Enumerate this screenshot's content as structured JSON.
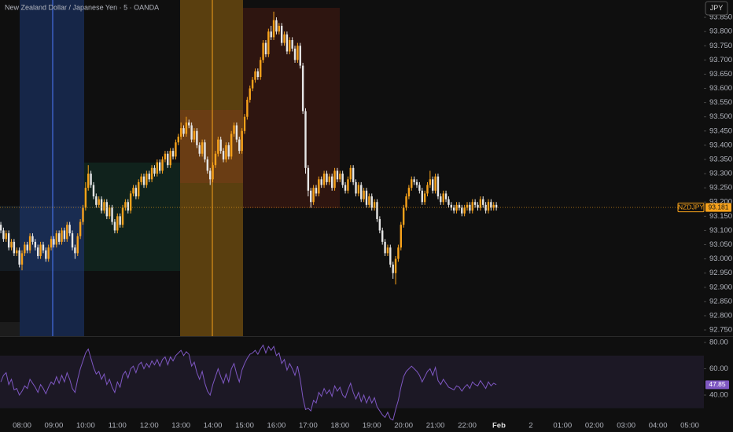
{
  "chart_data": {
    "type": "candlestick",
    "title": "New Zealand Dollar / Japanese Yen · 5 · OANDA",
    "symbol": "NZDJPY",
    "currency": "JPY",
    "last_price": 93.181,
    "up_color": "#f7a21b",
    "down_color": "#e6e6e6",
    "price_line_color": "#f7a21b",
    "ylim": [
      92.728,
      93.911
    ],
    "yticks": [
      {
        "value": 92.75,
        "label": "92.750"
      },
      {
        "value": 92.8,
        "label": "92.800"
      },
      {
        "value": 92.85,
        "label": "92.850"
      },
      {
        "value": 92.9,
        "label": "92.900"
      },
      {
        "value": 92.95,
        "label": "92.950"
      },
      {
        "value": 93.0,
        "label": "93.000"
      },
      {
        "value": 93.05,
        "label": "93.050"
      },
      {
        "value": 93.1,
        "label": "93.100"
      },
      {
        "value": 93.15,
        "label": "93.150"
      },
      {
        "value": 93.2,
        "label": "93.200"
      },
      {
        "value": 93.25,
        "label": "93.250"
      },
      {
        "value": 93.3,
        "label": "93.300"
      },
      {
        "value": 93.35,
        "label": "93.350"
      },
      {
        "value": 93.4,
        "label": "93.400"
      },
      {
        "value": 93.45,
        "label": "93.450"
      },
      {
        "value": 93.5,
        "label": "93.500"
      },
      {
        "value": 93.55,
        "label": "93.550"
      },
      {
        "value": 93.6,
        "label": "93.600"
      },
      {
        "value": 93.65,
        "label": "93.650"
      },
      {
        "value": 93.7,
        "label": "93.700"
      },
      {
        "value": 93.75,
        "label": "93.750"
      },
      {
        "value": 93.8,
        "label": "93.800"
      },
      {
        "value": 93.85,
        "label": "93.850"
      }
    ],
    "x_labels": [
      "08:00",
      "09:00",
      "10:00",
      "11:00",
      "12:00",
      "13:00",
      "14:00",
      "15:00",
      "16:00",
      "17:00",
      "18:00",
      "19:00",
      "20:00",
      "21:00",
      "22:00",
      "Feb",
      "2",
      "01:00",
      "02:00",
      "03:00",
      "04:00",
      "05:00"
    ],
    "open": [
      93.12,
      93.1,
      93.07,
      93.09,
      93.04,
      93.06,
      93.02,
      93.03,
      92.98,
      93.02,
      93.05,
      93.03,
      93.08,
      93.06,
      93.04,
      93.01,
      93.05,
      93.03,
      93.0,
      93.04,
      93.07,
      93.05,
      93.09,
      93.06,
      93.1,
      93.07,
      93.12,
      93.09,
      93.04,
      93.02,
      93.08,
      93.13,
      93.18,
      93.25,
      93.3,
      93.26,
      93.22,
      93.19,
      93.21,
      93.17,
      93.2,
      93.15,
      93.18,
      93.13,
      93.1,
      93.15,
      93.12,
      93.18,
      93.2,
      93.17,
      93.23,
      93.25,
      93.22,
      93.27,
      93.29,
      93.26,
      93.3,
      93.28,
      93.32,
      93.3,
      93.34,
      93.31,
      93.35,
      93.37,
      93.33,
      93.38,
      93.36,
      93.41,
      93.43,
      93.46,
      93.44,
      93.48,
      93.47,
      93.42,
      93.45,
      93.4,
      93.37,
      93.41,
      93.35,
      93.31,
      93.28,
      93.33,
      93.37,
      93.42,
      93.38,
      93.35,
      93.4,
      93.36,
      93.44,
      93.47,
      93.42,
      93.38,
      93.45,
      93.5,
      93.56,
      93.6,
      93.63,
      93.66,
      93.64,
      93.7,
      93.76,
      93.72,
      93.8,
      93.78,
      93.84,
      93.8,
      93.82,
      93.76,
      93.79,
      93.73,
      93.77,
      93.74,
      93.7,
      93.75,
      93.68,
      93.52,
      93.32,
      93.24,
      93.2,
      93.25,
      93.23,
      93.28,
      93.26,
      93.3,
      93.27,
      93.29,
      93.25,
      93.31,
      93.28,
      93.3,
      93.26,
      93.24,
      93.28,
      93.32,
      93.27,
      93.23,
      93.26,
      93.21,
      93.24,
      93.19,
      93.22,
      93.18,
      93.2,
      93.14,
      93.1,
      93.06,
      93.02,
      93.04,
      92.98,
      92.95,
      93.0,
      93.04,
      93.12,
      93.18,
      93.22,
      93.25,
      93.28,
      93.27,
      93.26,
      93.24,
      93.2,
      93.23,
      93.26,
      93.28,
      93.24,
      93.29,
      93.22,
      93.2,
      93.23,
      93.21,
      93.19,
      93.18,
      93.17,
      93.19,
      93.18,
      93.16,
      93.18,
      93.19,
      93.17,
      93.2,
      93.19,
      93.18,
      93.21,
      93.19,
      93.17,
      93.2,
      93.18,
      93.19
    ],
    "high": [
      93.13,
      93.11,
      93.1,
      93.1,
      93.07,
      93.07,
      93.04,
      93.04,
      93.03,
      93.06,
      93.06,
      93.09,
      93.09,
      93.07,
      93.05,
      93.06,
      93.06,
      93.04,
      93.05,
      93.08,
      93.08,
      93.1,
      93.1,
      93.11,
      93.11,
      93.13,
      93.13,
      93.1,
      93.05,
      93.09,
      93.14,
      93.19,
      93.27,
      93.33,
      93.31,
      93.27,
      93.23,
      93.22,
      93.22,
      93.21,
      93.21,
      93.19,
      93.19,
      93.14,
      93.16,
      93.16,
      93.19,
      93.21,
      93.21,
      93.24,
      93.26,
      93.26,
      93.28,
      93.3,
      93.3,
      93.31,
      93.31,
      93.33,
      93.33,
      93.35,
      93.35,
      93.36,
      93.38,
      93.38,
      93.39,
      93.39,
      93.42,
      93.44,
      93.48,
      93.47,
      93.5,
      93.49,
      93.48,
      93.46,
      93.46,
      93.41,
      93.42,
      93.42,
      93.36,
      93.32,
      93.34,
      93.38,
      93.43,
      93.43,
      93.39,
      93.41,
      93.41,
      93.45,
      93.48,
      93.48,
      93.43,
      93.46,
      93.51,
      93.57,
      93.61,
      93.64,
      93.67,
      93.67,
      93.71,
      93.77,
      93.77,
      93.81,
      93.82,
      93.87,
      93.85,
      93.83,
      93.83,
      93.8,
      93.8,
      93.78,
      93.78,
      93.75,
      93.76,
      93.76,
      93.69,
      93.53,
      93.33,
      93.25,
      93.26,
      93.26,
      93.29,
      93.29,
      93.31,
      93.31,
      93.3,
      93.3,
      93.32,
      93.32,
      93.31,
      93.31,
      93.27,
      93.29,
      93.33,
      93.33,
      93.28,
      93.27,
      93.27,
      93.25,
      93.25,
      93.23,
      93.23,
      93.21,
      93.21,
      93.15,
      93.11,
      93.07,
      93.05,
      93.05,
      92.99,
      93.01,
      93.05,
      93.13,
      93.19,
      93.23,
      93.26,
      93.29,
      93.29,
      93.28,
      93.27,
      93.25,
      93.24,
      93.27,
      93.31,
      93.29,
      93.3,
      93.3,
      93.23,
      93.24,
      93.24,
      93.22,
      93.2,
      93.19,
      93.2,
      93.2,
      93.19,
      93.19,
      93.2,
      93.2,
      93.21,
      93.21,
      93.2,
      93.22,
      93.22,
      93.2,
      93.21,
      93.21,
      93.2,
      93.2
    ],
    "low": [
      93.09,
      93.06,
      93.06,
      93.03,
      93.03,
      93.01,
      93.01,
      92.97,
      92.96,
      93.01,
      93.02,
      93.02,
      93.05,
      93.03,
      93.0,
      93.0,
      93.02,
      92.99,
      92.99,
      93.03,
      93.04,
      93.04,
      93.05,
      93.05,
      93.06,
      93.06,
      93.08,
      93.03,
      93.0,
      93.01,
      93.07,
      93.12,
      93.17,
      93.24,
      93.25,
      93.21,
      93.18,
      93.18,
      93.16,
      93.16,
      93.14,
      93.14,
      93.12,
      93.09,
      93.09,
      93.11,
      93.11,
      93.17,
      93.16,
      93.16,
      93.22,
      93.21,
      93.21,
      93.26,
      93.25,
      93.25,
      93.27,
      93.27,
      93.29,
      93.29,
      93.3,
      93.3,
      93.34,
      93.32,
      93.32,
      93.35,
      93.35,
      93.4,
      93.42,
      93.43,
      93.43,
      93.46,
      93.41,
      93.41,
      93.39,
      93.36,
      93.36,
      93.34,
      93.3,
      93.26,
      93.27,
      93.32,
      93.36,
      93.37,
      93.34,
      93.34,
      93.35,
      93.35,
      93.43,
      93.41,
      93.37,
      93.37,
      93.44,
      93.49,
      93.55,
      93.59,
      93.62,
      93.63,
      93.63,
      93.69,
      93.71,
      93.71,
      93.77,
      93.77,
      93.79,
      93.79,
      93.75,
      93.75,
      93.72,
      93.72,
      93.73,
      93.69,
      93.69,
      93.67,
      93.51,
      93.3,
      93.22,
      93.18,
      93.19,
      93.22,
      93.22,
      93.25,
      93.25,
      93.26,
      93.26,
      93.24,
      93.24,
      93.27,
      93.27,
      93.25,
      93.23,
      93.23,
      93.27,
      93.26,
      93.22,
      93.22,
      93.2,
      93.2,
      93.18,
      93.18,
      93.17,
      93.17,
      93.13,
      93.09,
      93.05,
      93.01,
      93.01,
      92.97,
      92.93,
      92.91,
      92.99,
      93.03,
      93.11,
      93.17,
      93.21,
      93.24,
      93.26,
      93.25,
      93.23,
      93.19,
      93.19,
      93.22,
      93.25,
      93.23,
      93.23,
      93.21,
      93.19,
      93.19,
      93.2,
      93.18,
      93.17,
      93.16,
      93.16,
      93.17,
      93.15,
      93.15,
      93.17,
      93.16,
      93.16,
      93.18,
      93.17,
      93.17,
      93.18,
      93.16,
      93.16,
      93.17,
      93.17,
      93.17
    ],
    "close": [
      93.1,
      93.07,
      93.09,
      93.04,
      93.06,
      93.02,
      93.03,
      92.98,
      93.02,
      93.05,
      93.03,
      93.08,
      93.06,
      93.04,
      93.01,
      93.05,
      93.03,
      93.0,
      93.04,
      93.07,
      93.05,
      93.09,
      93.06,
      93.1,
      93.07,
      93.12,
      93.09,
      93.04,
      93.02,
      93.08,
      93.13,
      93.18,
      93.25,
      93.3,
      93.26,
      93.22,
      93.19,
      93.21,
      93.17,
      93.2,
      93.15,
      93.18,
      93.13,
      93.1,
      93.15,
      93.12,
      93.18,
      93.2,
      93.17,
      93.23,
      93.25,
      93.22,
      93.27,
      93.29,
      93.26,
      93.3,
      93.28,
      93.32,
      93.3,
      93.34,
      93.31,
      93.35,
      93.37,
      93.33,
      93.38,
      93.36,
      93.41,
      93.43,
      93.46,
      93.44,
      93.48,
      93.47,
      93.42,
      93.45,
      93.4,
      93.37,
      93.41,
      93.35,
      93.31,
      93.28,
      93.33,
      93.37,
      93.42,
      93.38,
      93.35,
      93.4,
      93.36,
      93.44,
      93.47,
      93.42,
      93.38,
      93.45,
      93.5,
      93.56,
      93.6,
      93.63,
      93.66,
      93.64,
      93.7,
      93.76,
      93.72,
      93.8,
      93.78,
      93.84,
      93.8,
      93.82,
      93.76,
      93.79,
      93.73,
      93.77,
      93.74,
      93.7,
      93.75,
      93.68,
      93.52,
      93.32,
      93.24,
      93.2,
      93.25,
      93.23,
      93.28,
      93.26,
      93.3,
      93.27,
      93.29,
      93.25,
      93.31,
      93.28,
      93.3,
      93.26,
      93.24,
      93.28,
      93.32,
      93.27,
      93.23,
      93.26,
      93.21,
      93.24,
      93.19,
      93.22,
      93.18,
      93.2,
      93.14,
      93.1,
      93.06,
      93.02,
      93.04,
      92.98,
      92.95,
      93.0,
      93.04,
      93.12,
      93.18,
      93.22,
      93.25,
      93.28,
      93.27,
      93.26,
      93.24,
      93.2,
      93.23,
      93.26,
      93.28,
      93.24,
      93.29,
      93.22,
      93.2,
      93.23,
      93.21,
      93.19,
      93.18,
      93.17,
      93.19,
      93.18,
      93.16,
      93.18,
      93.19,
      93.17,
      93.2,
      93.19,
      93.18,
      93.21,
      93.19,
      93.17,
      93.2,
      93.18,
      93.19,
      93.18
    ],
    "rsi": {
      "type": "line",
      "color": "#7e57c2",
      "band": [
        30,
        70
      ],
      "ylim": [
        25.07,
        84.18
      ],
      "yticks": [
        {
          "value": 40,
          "label": "40.00"
        },
        {
          "value": 60,
          "label": "60.00"
        },
        {
          "value": 80,
          "label": "80.00"
        }
      ],
      "values": [
        50,
        55,
        57,
        48,
        52,
        44,
        45,
        40,
        43,
        47,
        45,
        52,
        49,
        46,
        42,
        48,
        45,
        41,
        46,
        50,
        48,
        54,
        49,
        55,
        50,
        57,
        52,
        45,
        42,
        52,
        60,
        66,
        72,
        75,
        68,
        61,
        56,
        58,
        52,
        56,
        48,
        52,
        46,
        42,
        50,
        46,
        55,
        58,
        53,
        60,
        62,
        57,
        63,
        65,
        60,
        64,
        61,
        66,
        63,
        67,
        62,
        67,
        69,
        63,
        69,
        66,
        70,
        72,
        74,
        70,
        73,
        71,
        62,
        65,
        57,
        52,
        58,
        49,
        43,
        40,
        48,
        54,
        60,
        54,
        49,
        56,
        50,
        60,
        64,
        56,
        50,
        59,
        64,
        68,
        71,
        72,
        74,
        71,
        75,
        78,
        72,
        77,
        74,
        77,
        70,
        72,
        64,
        67,
        59,
        64,
        60,
        55,
        62,
        52,
        38,
        29,
        30,
        28,
        36,
        34,
        42,
        39,
        45,
        41,
        44,
        39,
        47,
        43,
        46,
        40,
        38,
        44,
        49,
        42,
        37,
        42,
        35,
        40,
        34,
        39,
        34,
        38,
        31,
        28,
        25,
        23,
        27,
        22,
        21,
        29,
        36,
        46,
        54,
        58,
        60,
        62,
        60,
        58,
        55,
        50,
        54,
        58,
        60,
        55,
        61,
        51,
        48,
        52,
        49,
        46,
        45,
        44,
        47,
        46,
        43,
        46,
        48,
        45,
        50,
        48,
        47,
        51,
        48,
        45,
        50,
        47,
        49,
        47.85
      ]
    }
  }
}
